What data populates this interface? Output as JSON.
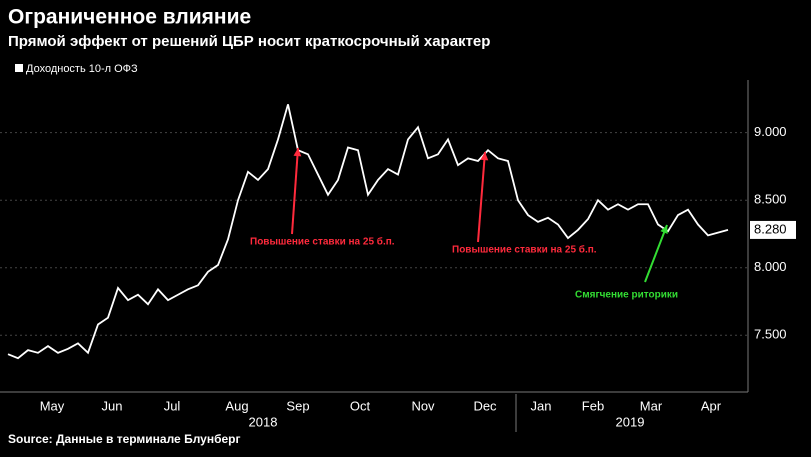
{
  "chart_data": {
    "type": "line",
    "title": "Ограниченное влияние",
    "subtitle": "Прямой эффект от решений ЦБР носит краткосрочный характер",
    "source": "Source: Данные в терминале Блунберг",
    "series": [
      {
        "name": "Доходность 10-л ОФЗ",
        "color": "#ffffff",
        "values": [
          7.36,
          7.33,
          7.39,
          7.37,
          7.42,
          7.37,
          7.4,
          7.44,
          7.37,
          7.58,
          7.63,
          7.85,
          7.76,
          7.8,
          7.73,
          7.84,
          7.76,
          7.8,
          7.84,
          7.87,
          7.97,
          8.02,
          8.21,
          8.5,
          8.71,
          8.65,
          8.73,
          8.95,
          9.21,
          8.87,
          8.84,
          8.69,
          8.54,
          8.65,
          8.89,
          8.87,
          8.54,
          8.65,
          8.73,
          8.69,
          8.95,
          9.04,
          8.81,
          8.84,
          8.95,
          8.76,
          8.81,
          8.79,
          8.87,
          8.81,
          8.79,
          8.5,
          8.39,
          8.34,
          8.37,
          8.32,
          8.22,
          8.28,
          8.36,
          8.5,
          8.43,
          8.47,
          8.43,
          8.47,
          8.47,
          8.32,
          8.27,
          8.39,
          8.43,
          8.32,
          8.24,
          8.26,
          8.28
        ],
        "last_value_label": "8.280"
      }
    ],
    "xlim": [
      0,
      72
    ],
    "xticks": [
      {
        "value": 4.4,
        "label": "May"
      },
      {
        "value": 10.4,
        "label": "Jun"
      },
      {
        "value": 16.4,
        "label": "Jul"
      },
      {
        "value": 22.9,
        "label": "Aug"
      },
      {
        "value": 29,
        "label": "Sep"
      },
      {
        "value": 35.2,
        "label": "Oct"
      },
      {
        "value": 41.5,
        "label": "Nov"
      },
      {
        "value": 47.7,
        "label": "Dec"
      },
      {
        "value": 53.3,
        "label": "Jan"
      },
      {
        "value": 58.5,
        "label": "Feb"
      },
      {
        "value": 64.3,
        "label": "Mar"
      },
      {
        "value": 70.3,
        "label": "Apr"
      }
    ],
    "year_labels": [
      {
        "value": 25.5,
        "label": "2018"
      },
      {
        "value": 62.2,
        "label": "2019"
      }
    ],
    "ylim": [
      7.08,
      9.39
    ],
    "yticks": [
      {
        "value": 7.5,
        "label": "7.500"
      },
      {
        "value": 8.0,
        "label": "8.000"
      },
      {
        "value": 8.5,
        "label": "8.500"
      },
      {
        "value": 9.0,
        "label": "9.000"
      }
    ],
    "grid": true,
    "annotations": [
      {
        "text": "Повышение ставки на 25 б.п.",
        "color": "#ff2a3c"
      },
      {
        "text": "Повышение ставки на 25 б.п.",
        "color": "#ff2a3c"
      },
      {
        "text": "Смягчение риторики",
        "color": "#33dd33"
      }
    ]
  }
}
